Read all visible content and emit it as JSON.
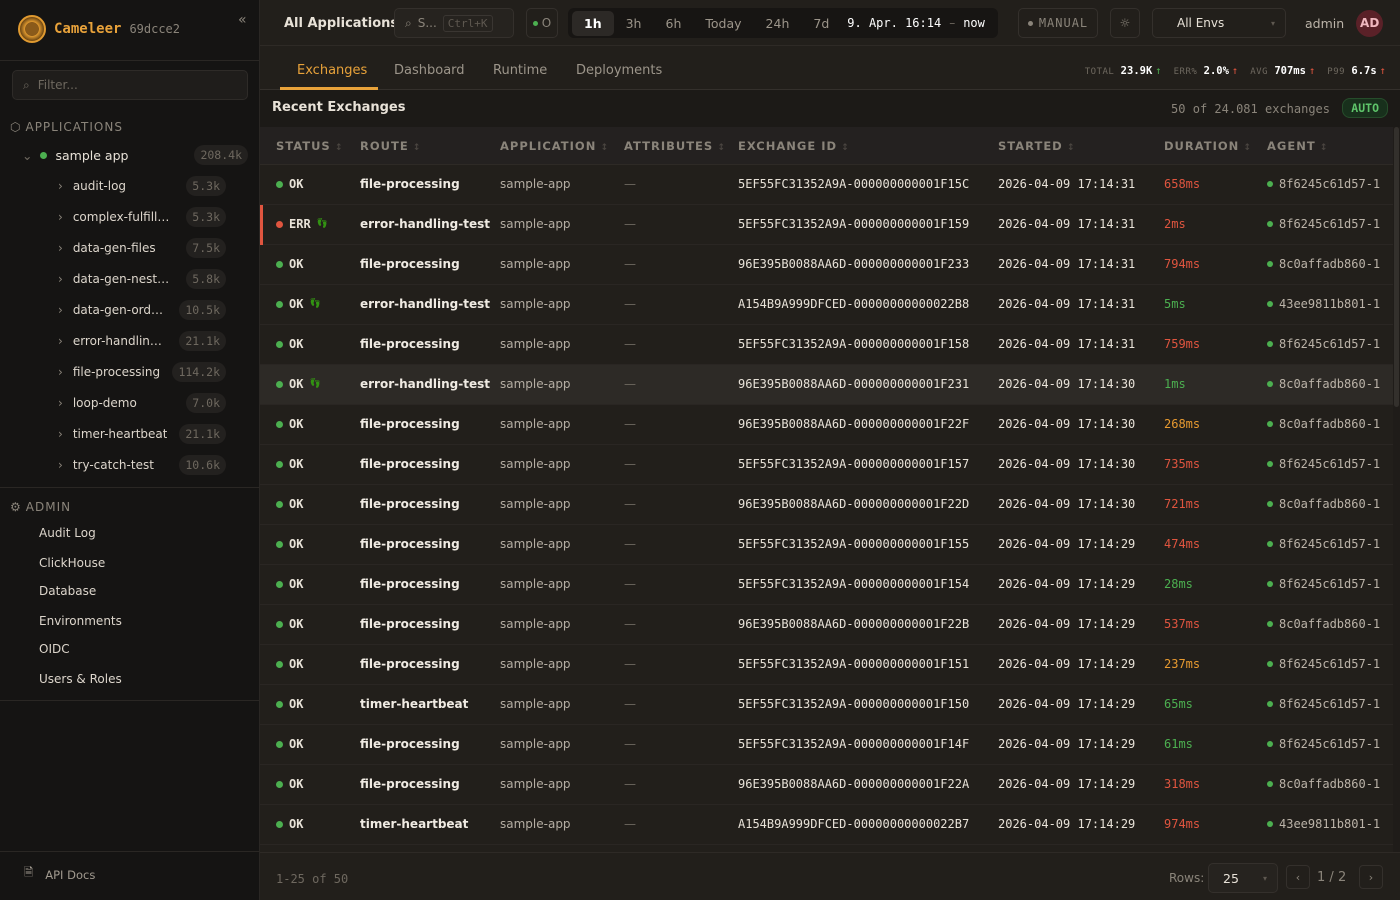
{
  "sidebar": {
    "brand": "Cameleer",
    "version": "69dcce2",
    "collapse_icon": "double-chevron-left",
    "filter_placeholder": "Filter...",
    "applications_title": "APPLICATIONS",
    "app": {
      "name": "sample app",
      "count": "208.4k",
      "status_color": "#4caf50"
    },
    "routes": [
      {
        "name": "audit-log",
        "count": "5.3k"
      },
      {
        "name": "complex-fulfillm…",
        "count": "5.3k"
      },
      {
        "name": "data-gen-files",
        "count": "7.5k"
      },
      {
        "name": "data-gen-neste…",
        "count": "5.8k"
      },
      {
        "name": "data-gen-orders",
        "count": "10.5k"
      },
      {
        "name": "error-handling-…",
        "count": "21.1k"
      },
      {
        "name": "file-processing",
        "count": "114.2k"
      },
      {
        "name": "loop-demo",
        "count": "7.0k"
      },
      {
        "name": "timer-heartbeat",
        "count": "21.1k"
      },
      {
        "name": "try-catch-test",
        "count": "10.6k"
      }
    ],
    "admin_title": "ADMIN",
    "admin_items": [
      "Audit Log",
      "ClickHouse",
      "Database",
      "Environments",
      "OIDC",
      "Users & Roles"
    ],
    "api_docs": "API Docs"
  },
  "topbar": {
    "title": "All Applications",
    "search_placeholder": "S...",
    "search_shortcut": "Ctrl+K",
    "live_label": "O",
    "time_options": [
      "1h",
      "3h",
      "6h",
      "Today",
      "24h",
      "7d"
    ],
    "active_time": "1h",
    "range_start": "9. Apr. 16:14",
    "range_sep": "–",
    "range_end": "now",
    "manual_label": "MANUAL",
    "env_select": "All Envs",
    "user": "admin",
    "avatar_initials": "AD"
  },
  "tabs": [
    "Exchanges",
    "Dashboard",
    "Runtime",
    "Deployments"
  ],
  "active_tab": "Exchanges",
  "kpis": [
    {
      "label": "TOTAL",
      "value": "23.9K",
      "trend": "up",
      "color": "#4caf50"
    },
    {
      "label": "ERR%",
      "value": "2.0%",
      "trend": "up",
      "color": "#e0553f"
    },
    {
      "label": "AVG",
      "value": "707ms",
      "trend": "up",
      "color": "#e0553f"
    },
    {
      "label": "P99",
      "value": "6.7s",
      "trend": "up",
      "color": "#e0553f"
    }
  ],
  "section": {
    "title": "Recent Exchanges",
    "count_text": "50 of 24.081 exchanges",
    "auto_label": "AUTO"
  },
  "columns": [
    "STATUS",
    "ROUTE",
    "APPLICATION",
    "ATTRIBUTES",
    "EXCHANGE ID",
    "STARTED",
    "DURATION",
    "AGENT"
  ],
  "rows": [
    {
      "status": "OK",
      "trace": false,
      "route": "file-processing",
      "app": "sample-app",
      "attributes": "—",
      "id": "5EF55FC31352A9A-000000000001F15C",
      "started": "2026-04-09 17:14:31",
      "duration": "658ms",
      "duration_level": "red",
      "agent": "8f6245c61d57-1"
    },
    {
      "status": "ERR",
      "trace": true,
      "route": "error-handling-test",
      "app": "sample-app",
      "attributes": "—",
      "id": "5EF55FC31352A9A-000000000001F159",
      "started": "2026-04-09 17:14:31",
      "duration": "2ms",
      "duration_level": "red",
      "agent": "8f6245c61d57-1"
    },
    {
      "status": "OK",
      "trace": false,
      "route": "file-processing",
      "app": "sample-app",
      "attributes": "—",
      "id": "96E395B0088AA6D-000000000001F233",
      "started": "2026-04-09 17:14:31",
      "duration": "794ms",
      "duration_level": "red",
      "agent": "8c0affadb860-1"
    },
    {
      "status": "OK",
      "trace": true,
      "route": "error-handling-test",
      "app": "sample-app",
      "attributes": "—",
      "id": "A154B9A999DFCED-00000000000022B8",
      "started": "2026-04-09 17:14:31",
      "duration": "5ms",
      "duration_level": "green",
      "agent": "43ee9811b801-1"
    },
    {
      "status": "OK",
      "trace": false,
      "route": "file-processing",
      "app": "sample-app",
      "attributes": "—",
      "id": "5EF55FC31352A9A-000000000001F158",
      "started": "2026-04-09 17:14:31",
      "duration": "759ms",
      "duration_level": "red",
      "agent": "8f6245c61d57-1"
    },
    {
      "status": "OK",
      "trace": true,
      "route": "error-handling-test",
      "app": "sample-app",
      "attributes": "—",
      "id": "96E395B0088AA6D-000000000001F231",
      "started": "2026-04-09 17:14:30",
      "duration": "1ms",
      "duration_level": "green",
      "agent": "8c0affadb860-1",
      "highlighted": true
    },
    {
      "status": "OK",
      "trace": false,
      "route": "file-processing",
      "app": "sample-app",
      "attributes": "—",
      "id": "96E395B0088AA6D-000000000001F22F",
      "started": "2026-04-09 17:14:30",
      "duration": "268ms",
      "duration_level": "orange",
      "agent": "8c0affadb860-1"
    },
    {
      "status": "OK",
      "trace": false,
      "route": "file-processing",
      "app": "sample-app",
      "attributes": "—",
      "id": "5EF55FC31352A9A-000000000001F157",
      "started": "2026-04-09 17:14:30",
      "duration": "735ms",
      "duration_level": "red",
      "agent": "8f6245c61d57-1"
    },
    {
      "status": "OK",
      "trace": false,
      "route": "file-processing",
      "app": "sample-app",
      "attributes": "—",
      "id": "96E395B0088AA6D-000000000001F22D",
      "started": "2026-04-09 17:14:30",
      "duration": "721ms",
      "duration_level": "red",
      "agent": "8c0affadb860-1"
    },
    {
      "status": "OK",
      "trace": false,
      "route": "file-processing",
      "app": "sample-app",
      "attributes": "—",
      "id": "5EF55FC31352A9A-000000000001F155",
      "started": "2026-04-09 17:14:29",
      "duration": "474ms",
      "duration_level": "red",
      "agent": "8f6245c61d57-1"
    },
    {
      "status": "OK",
      "trace": false,
      "route": "file-processing",
      "app": "sample-app",
      "attributes": "—",
      "id": "5EF55FC31352A9A-000000000001F154",
      "started": "2026-04-09 17:14:29",
      "duration": "28ms",
      "duration_level": "green",
      "agent": "8f6245c61d57-1"
    },
    {
      "status": "OK",
      "trace": false,
      "route": "file-processing",
      "app": "sample-app",
      "attributes": "—",
      "id": "96E395B0088AA6D-000000000001F22B",
      "started": "2026-04-09 17:14:29",
      "duration": "537ms",
      "duration_level": "red",
      "agent": "8c0affadb860-1"
    },
    {
      "status": "OK",
      "trace": false,
      "route": "file-processing",
      "app": "sample-app",
      "attributes": "—",
      "id": "5EF55FC31352A9A-000000000001F151",
      "started": "2026-04-09 17:14:29",
      "duration": "237ms",
      "duration_level": "orange",
      "agent": "8f6245c61d57-1"
    },
    {
      "status": "OK",
      "trace": false,
      "route": "timer-heartbeat",
      "app": "sample-app",
      "attributes": "—",
      "id": "5EF55FC31352A9A-000000000001F150",
      "started": "2026-04-09 17:14:29",
      "duration": "65ms",
      "duration_level": "green",
      "agent": "8f6245c61d57-1"
    },
    {
      "status": "OK",
      "trace": false,
      "route": "file-processing",
      "app": "sample-app",
      "attributes": "—",
      "id": "5EF55FC31352A9A-000000000001F14F",
      "started": "2026-04-09 17:14:29",
      "duration": "61ms",
      "duration_level": "green",
      "agent": "8f6245c61d57-1"
    },
    {
      "status": "OK",
      "trace": false,
      "route": "file-processing",
      "app": "sample-app",
      "attributes": "—",
      "id": "96E395B0088AA6D-000000000001F22A",
      "started": "2026-04-09 17:14:29",
      "duration": "318ms",
      "duration_level": "red",
      "agent": "8c0affadb860-1"
    },
    {
      "status": "OK",
      "trace": false,
      "route": "timer-heartbeat",
      "app": "sample-app",
      "attributes": "—",
      "id": "A154B9A999DFCED-00000000000022B7",
      "started": "2026-04-09 17:14:29",
      "duration": "974ms",
      "duration_level": "red",
      "agent": "43ee9811b801-1"
    }
  ],
  "footer": {
    "range_text": "1-25 of 50",
    "rows_label": "Rows:",
    "rows_value": "25",
    "page": "1",
    "page_sep": "/",
    "pages": "2"
  },
  "colors": {
    "accent": "#e8a23a",
    "ok": "#4caf50",
    "error": "#e0553f",
    "warn": "#e89a30"
  }
}
